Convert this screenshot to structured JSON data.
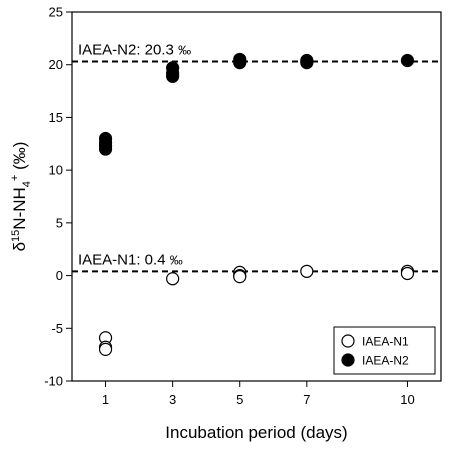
{
  "chart_data": {
    "type": "scatter",
    "title": "",
    "xlabel": "Incubation period (days)",
    "ylabel": {
      "base": "δ",
      "sup1": "15",
      "mid": "N-NH",
      "sub": "4",
      "sup2": "+",
      "unit": " (‰)"
    },
    "x_ticks": [
      1,
      3,
      5,
      7,
      10
    ],
    "y_ticks": [
      -10,
      -5,
      0,
      5,
      10,
      15,
      20,
      25
    ],
    "xlim": [
      0.0,
      11.0
    ],
    "ylim": [
      -10,
      25
    ],
    "grid": false,
    "legend_position": "bottom-right",
    "series": [
      {
        "name": "IAEA-N1",
        "marker": "open-circle",
        "color": "#000000",
        "points": [
          {
            "x": 1,
            "y": -5.9
          },
          {
            "x": 1,
            "y": -6.8
          },
          {
            "x": 1,
            "y": -7.0
          },
          {
            "x": 3,
            "y": -0.3
          },
          {
            "x": 5,
            "y": 0.3
          },
          {
            "x": 5,
            "y": 0.0
          },
          {
            "x": 5,
            "y": -0.1
          },
          {
            "x": 7,
            "y": 0.4
          },
          {
            "x": 10,
            "y": 0.4
          },
          {
            "x": 10,
            "y": 0.2
          }
        ]
      },
      {
        "name": "IAEA-N2",
        "marker": "filled-circle",
        "color": "#000000",
        "points": [
          {
            "x": 1,
            "y": 13.0
          },
          {
            "x": 1,
            "y": 12.6
          },
          {
            "x": 1,
            "y": 12.3
          },
          {
            "x": 1,
            "y": 12.0
          },
          {
            "x": 3,
            "y": 19.7
          },
          {
            "x": 3,
            "y": 19.2
          },
          {
            "x": 3,
            "y": 18.9
          },
          {
            "x": 5,
            "y": 20.5
          },
          {
            "x": 5,
            "y": 20.2
          },
          {
            "x": 7,
            "y": 20.4
          },
          {
            "x": 7,
            "y": 20.2
          },
          {
            "x": 10,
            "y": 20.4
          }
        ]
      }
    ],
    "reference_lines": [
      {
        "y": 20.3,
        "label_name": "IAEA-N2: 20.3 ",
        "unit": "‰",
        "style": "dashed"
      },
      {
        "y": 0.4,
        "label_name": "IAEA-N1: 0.4 ",
        "unit": "‰",
        "style": "dashed"
      }
    ]
  }
}
